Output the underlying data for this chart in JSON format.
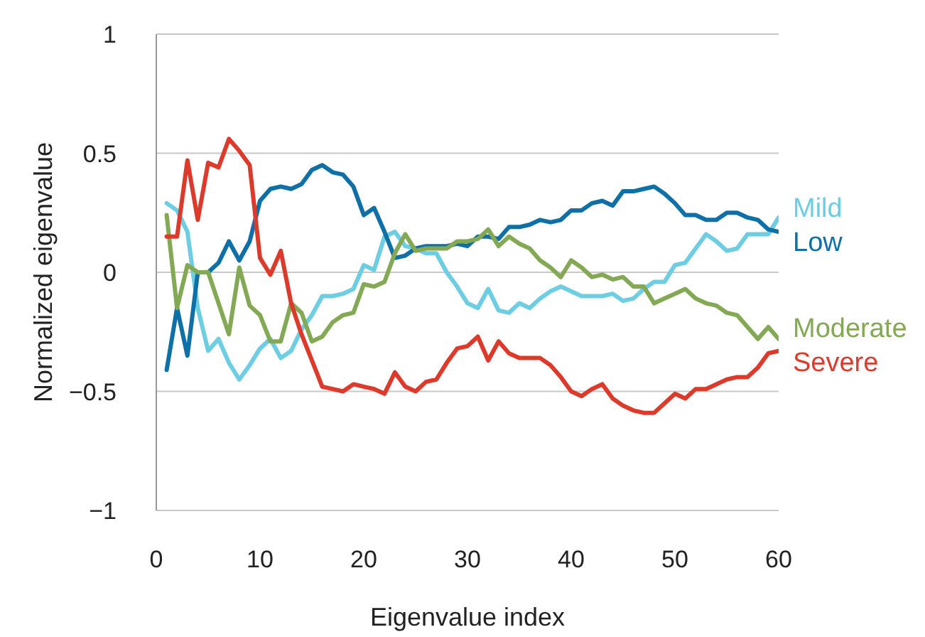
{
  "chart_data": {
    "type": "line",
    "xlabel": "Eigenvalue index",
    "ylabel": "Normalized eigenvalue",
    "x": [
      1,
      2,
      3,
      4,
      5,
      6,
      7,
      8,
      9,
      10,
      11,
      12,
      13,
      14,
      15,
      16,
      17,
      18,
      19,
      20,
      21,
      22,
      23,
      24,
      25,
      26,
      27,
      28,
      29,
      30,
      31,
      32,
      33,
      34,
      35,
      36,
      37,
      38,
      39,
      40,
      41,
      42,
      43,
      44,
      45,
      46,
      47,
      48,
      49,
      50,
      51,
      52,
      53,
      54,
      55,
      56,
      57,
      58,
      59,
      60
    ],
    "xlim": [
      0,
      60
    ],
    "xticks": [
      0,
      10,
      20,
      30,
      40,
      50,
      60
    ],
    "ylim": [
      -1,
      1
    ],
    "yticks": [
      {
        "value": -1,
        "label": "−1"
      },
      {
        "value": -0.5,
        "label": "−0.5"
      },
      0,
      0.5,
      1
    ],
    "grid": "y",
    "legend": false,
    "marker": "none",
    "line_style": "solid",
    "series": [
      {
        "name": "Mild",
        "color": "#6dcde2",
        "values": [
          0.29,
          0.26,
          0.17,
          -0.15,
          -0.33,
          -0.28,
          -0.38,
          -0.45,
          -0.39,
          -0.32,
          -0.28,
          -0.36,
          -0.33,
          -0.24,
          -0.18,
          -0.1,
          -0.1,
          -0.09,
          -0.07,
          0.03,
          0.01,
          0.15,
          0.17,
          0.11,
          0.1,
          0.08,
          0.08,
          0.0,
          -0.06,
          -0.13,
          -0.15,
          -0.07,
          -0.16,
          -0.17,
          -0.13,
          -0.15,
          -0.11,
          -0.08,
          -0.06,
          -0.08,
          -0.1,
          -0.1,
          -0.1,
          -0.09,
          -0.12,
          -0.11,
          -0.07,
          -0.04,
          -0.04,
          0.03,
          0.04,
          0.1,
          0.16,
          0.13,
          0.09,
          0.1,
          0.16,
          0.16,
          0.16,
          0.23
        ]
      },
      {
        "name": "Low",
        "color": "#0f70a8",
        "values": [
          -0.41,
          -0.15,
          -0.35,
          0.0,
          0.0,
          0.04,
          0.13,
          0.05,
          0.13,
          0.3,
          0.35,
          0.36,
          0.35,
          0.37,
          0.43,
          0.45,
          0.42,
          0.41,
          0.36,
          0.24,
          0.27,
          0.17,
          0.06,
          0.07,
          0.1,
          0.11,
          0.11,
          0.11,
          0.12,
          0.11,
          0.15,
          0.15,
          0.14,
          0.19,
          0.19,
          0.2,
          0.22,
          0.21,
          0.22,
          0.26,
          0.26,
          0.29,
          0.3,
          0.28,
          0.34,
          0.34,
          0.35,
          0.36,
          0.33,
          0.29,
          0.24,
          0.24,
          0.22,
          0.22,
          0.25,
          0.25,
          0.23,
          0.22,
          0.18,
          0.17
        ]
      },
      {
        "name": "Moderate",
        "color": "#84a955",
        "values": [
          0.24,
          -0.15,
          0.03,
          0.0,
          0.0,
          -0.13,
          -0.26,
          0.02,
          -0.14,
          -0.18,
          -0.29,
          -0.29,
          -0.13,
          -0.17,
          -0.29,
          -0.27,
          -0.21,
          -0.18,
          -0.17,
          -0.05,
          -0.06,
          -0.04,
          0.08,
          0.16,
          0.09,
          0.1,
          0.1,
          0.1,
          0.13,
          0.13,
          0.14,
          0.18,
          0.11,
          0.15,
          0.12,
          0.1,
          0.05,
          0.02,
          -0.02,
          0.05,
          0.02,
          -0.02,
          -0.01,
          -0.03,
          -0.02,
          -0.06,
          -0.06,
          -0.13,
          -0.11,
          -0.09,
          -0.07,
          -0.11,
          -0.13,
          -0.14,
          -0.17,
          -0.18,
          -0.23,
          -0.28,
          -0.23,
          -0.28
        ]
      },
      {
        "name": "Severe",
        "color": "#de3a2c",
        "values": [
          0.15,
          0.15,
          0.47,
          0.22,
          0.46,
          0.44,
          0.56,
          0.51,
          0.45,
          0.06,
          -0.01,
          0.09,
          -0.13,
          -0.26,
          -0.37,
          -0.48,
          -0.49,
          -0.5,
          -0.47,
          -0.48,
          -0.49,
          -0.51,
          -0.42,
          -0.48,
          -0.5,
          -0.46,
          -0.45,
          -0.38,
          -0.32,
          -0.31,
          -0.27,
          -0.37,
          -0.29,
          -0.34,
          -0.36,
          -0.36,
          -0.36,
          -0.39,
          -0.44,
          -0.5,
          -0.52,
          -0.49,
          -0.47,
          -0.53,
          -0.56,
          -0.58,
          -0.59,
          -0.59,
          -0.55,
          -0.51,
          -0.53,
          -0.49,
          -0.49,
          -0.47,
          -0.45,
          -0.44,
          -0.44,
          -0.4,
          -0.34,
          -0.33
        ]
      }
    ]
  }
}
